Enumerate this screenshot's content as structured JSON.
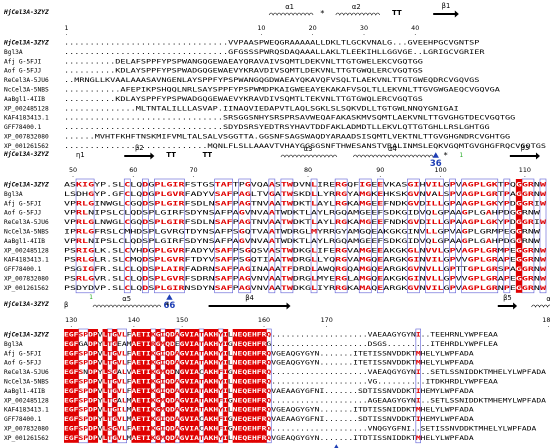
{
  "colors": {
    "identical": "#e00000",
    "similar_text": "#e00000",
    "box": "#5b5bd6",
    "marker": "#1f3fb5",
    "disulfide": "#22a822"
  },
  "blocks": [
    {
      "ref_label": "HjCel3A-3ZYZ",
      "numbers": [
        {
          "col": 0,
          "text": "1"
        },
        {
          "col": 38,
          "text": "10"
        },
        {
          "col": 48,
          "text": "20"
        },
        {
          "col": 58,
          "text": "30"
        },
        {
          "col": 68,
          "text": "40"
        }
      ],
      "ss": [
        {
          "type": "helix",
          "name": "α1",
          "start": 40,
          "end": 47
        },
        {
          "type": "star",
          "name": "*",
          "start": 50
        },
        {
          "type": "helix",
          "name": "α2",
          "start": 53,
          "end": 60
        },
        {
          "type": "turn",
          "name": "TT",
          "start": 64
        },
        {
          "type": "strand",
          "name": "β1",
          "start": 72,
          "end": 76
        }
      ],
      "rows": [
        {
          "name": "HjCel3A-3ZYZ",
          "seq": "................................VVPAASPWEQGRAAAAALLDKLTLGCKVNALG...GVEEHPGCVGNTSP"
        },
        {
          "name": "Bgl3A",
          "seq": "................................GFGSSSPWRQSDAQAAALLAKLTLEEKIHLLGGVGE..LGRIGCVGRIER"
        },
        {
          "name": "Afj G-5FJI",
          "seq": "..........DELAFSPPFYPSPWANGQGEWAEAYQRAVAIVSQMTLDEKVNLTTGTGWELEKCVGQTGG"
        },
        {
          "name": "Aof G-5FJJ",
          "seq": "..........KDLAYSPPFYPSPWADGQGEWAEVYKRAVDIVSQMTLDEKVNLTTGTGWQLERCVGQTGS"
        },
        {
          "name": "ReCel3A-5JU6",
          "seq": "..MRNGLLKVAALAAASAVNGENLAYSPPFYPSPWANGQGDWAEAYQKAVQFVSQLTLAEKVNLTTGTGWEQDRCVGQVGS"
        },
        {
          "name": "NcCel3A-5NBS",
          "seq": "...........AFEPIKPSHQQLNRLSAYSPPFYPSPWMDPKAIGWEEAYEKAKAFVSQLTLLEKVNLTTGVGWGAEQCVGQVGA"
        },
        {
          "name": "AaBgl1-4IIB",
          "seq": "..........KDLAYSPPFYPSPWADGQGEWAEVYKRAVDIVSQMTLTEKVNLTTGTGWQLERCVGQTGS"
        },
        {
          "name": "XP_002485128",
          "seq": "..............MLTNTALILLLASVAP.IINAQVIEDAPVTLAQLSGKLSLSQKVDLLTGTGWLNNQYGNIGAI"
        },
        {
          "name": "KAF4183413.1",
          "seq": "...............................SRSGGSNHYSRSPRSAVWEQAFAKASKMVSQMTLAEKVNLTTGVGHGTDECVGQTGG"
        },
        {
          "name": "GFF78400.1",
          "seq": "...............................SDYDSRSYEDTRSYHAVTDDFAKLADMDTLLEKVLQTTGTGHLLRSLGHTGG"
        },
        {
          "name": "XP_007832080",
          "seq": "......MVHTFKHFTNSKMIFVMLTALSALVSGGTTA.GGSNFSAGSWAQDYARAADSISQMTLVEKTNLTTGVGHGNDRCVGHTGG"
        },
        {
          "name": "XP_001261562",
          "seq": "............................MQNLFLSLLAAAVTVHAYGGSGSNFTHWESANSTVRALINMSLEQKVGQMTGVGHGFRQCVGQTGS"
        }
      ],
      "markers": [
        {
          "col": 72,
          "text": "36"
        }
      ],
      "disulfide": [
        {
          "col": 77,
          "text": "1"
        }
      ]
    },
    {
      "ref_label": "HjCel3A-3ZYZ",
      "numbers": [
        {
          "col": 1,
          "text": "50"
        },
        {
          "col": 11,
          "text": "60"
        },
        {
          "col": 21,
          "text": "70"
        },
        {
          "col": 40,
          "text": "80"
        },
        {
          "col": 52,
          "text": "90"
        },
        {
          "col": 62,
          "text": "100"
        },
        {
          "col": 76,
          "text": "110"
        },
        {
          "col": 90,
          "text": "120"
        }
      ],
      "ss": [
        {
          "type": "label",
          "name": "η1",
          "start": 2
        },
        {
          "type": "strand",
          "name": "β2",
          "start": 10,
          "end": 14
        },
        {
          "type": "turn",
          "name": "TT",
          "start": 17
        },
        {
          "type": "turn",
          "name": "TT",
          "start": 23
        },
        {
          "type": "helix",
          "name": "α3",
          "start": 36,
          "end": 44
        },
        {
          "type": "helix",
          "name": "α4",
          "start": 48,
          "end": 60
        },
        {
          "type": "star",
          "name": "*",
          "start": 63
        },
        {
          "type": "strand",
          "name": "β3",
          "start": 74,
          "end": 78
        },
        {
          "type": "turn",
          "name": "TT",
          "start": 93
        },
        {
          "type": "label",
          "name": "η2",
          "start": 98
        }
      ],
      "rows": [
        {
          "name": "HjCel3A-3ZYZ",
          "seq": "ASKIGYP.SLCLQDGPLGIRFSTGSTAFTPGVQAASTWDVNLIRERGQFIGEEVKASGIHVILGPVAGPLGKTPQGGRNW"
        },
        {
          "name": "Bgl3A",
          "seq": "LSDHGYP.GFCLQDGPLGVRFADYVSAFPAGLTVGATWSKDLLYRRGYAMGKEHKSKGVNVALSPVAGPLGRTPAGGRNW"
        },
        {
          "name": "Afj G-5FJI",
          "seq": "VPRLGINWGLCGQDSPLGIRFSDLNSAFPAGTNVAATWDKTLAYLRGKAMGEEFNDKGVDILLGPAAGPLGKYPDGGRIW"
        },
        {
          "name": "Aof G-5FJJ",
          "seq": "VPRLNIPSLCLQDSPLGIRFSDYNSAFPAGVNVAATWDKTLAYLRGQAMGEEFSDKGIDVQLGPAAGPLGAHPDGGRNW"
        },
        {
          "name": "ReCel3A-5JU6",
          "seq": "VPRLGLNWGLCGQDSPLGIRFSDLNSAFPAGTNVAATWDKTLAYLRGKAMGEEFNDKGVDILLGPAAGPLGKYPDGGRIW"
        },
        {
          "name": "NcCel3A-5NBS",
          "seq": "IPRLGFRSLCMHDSPLGVRGTDYNSAFPSGQTVAATWDRGLMYRRGYAMGQEAKGKGINVLLGPVAGPLGRMPEGGRNW"
        },
        {
          "name": "AaBgl1-4IIB",
          "seq": "VPRLNIPSLCLQDSPLGIRFSDYNSAFPAGVNVAATWDKTLAYLRGQAMGEEFSDKGIDVQLGPAAGPLGAHPDGGRNW"
        },
        {
          "name": "XP_002485128",
          "seq": "PSRIGLK.SLCVHDGPLGVRFADYVSAFPSGQSVASTWDKGLIFERGVAMGEEAKGKGLNVVLGPVAGPLGRMPEGGRNW"
        },
        {
          "name": "KAF4183413.1",
          "seq": "PSRLGLR.SLCMQDSPLGVRFTDYVSAFPSGQTIAATWDRGLLYQRGVAMGQEARGKGINVILGPVVGPLGRAPEGGRNW"
        },
        {
          "name": "GFF78400.1",
          "seq": "PSGIGFR.SLCLQDSPLAIRFADRNSAFPAGINAAATFDRDLAWQRGQAMGQEARGKGVNVLLGPTTGPLGRSPAGGRNW"
        },
        {
          "name": "XP_007832080",
          "seq": "PSRLGVR.SLCLQDSPLGVRFSDRNSAFPAGVNVAATWDRGLMYERGLAMGQEAKGKGINVLLGPVVGPLGRAPEGGRNW"
        },
        {
          "name": "XP_001261562",
          "seq": "PSDYDVP.SLCLQDSPLGIRNSDYNSAFPAGVNVAATWDKGLIYRRGKAMAQEARGKGVNVILGPVAGPLGRNPEGGRNW"
        }
      ],
      "markers": [
        {
          "col": 17,
          "text": "66"
        }
      ],
      "disulfide": [
        {
          "col": 4,
          "text": "1"
        }
      ]
    },
    {
      "ref_label": "HjCel3A-3ZYZ",
      "numbers": [
        {
          "col": 1,
          "text": "130"
        },
        {
          "col": 14,
          "text": "140"
        },
        {
          "col": 24,
          "text": "150"
        },
        {
          "col": 41,
          "text": "160"
        },
        {
          "col": 54,
          "text": "170"
        },
        {
          "col": 100,
          "text": "180"
        },
        {
          "col": 114,
          "text": "190"
        }
      ],
      "ss": [
        {
          "type": "label",
          "name": "β",
          "start": 0
        },
        {
          "type": "helix",
          "name": "α5",
          "start": 6,
          "end": 19
        },
        {
          "type": "star",
          "name": "*",
          "start": 21
        },
        {
          "type": "strand",
          "name": "β4",
          "start": 30,
          "end": 46
        },
        {
          "type": "strand",
          "name": "β5",
          "start": 90,
          "end": 93
        },
        {
          "type": "helix",
          "name": "α6",
          "start": 97,
          "end": 104
        },
        {
          "type": "helix",
          "name": "α7",
          "start": 111,
          "end": 118
        }
      ],
      "rows": [
        {
          "name": "HjCel3A-3ZYZ",
          "seq": "EGFSPDPVLTGVLFAETIKGIQDAGVIATAKHYILNEQEHFRQ....................VAEAAGYGYNI..TEEHRNLYWPFEAA"
        },
        {
          "name": "Bgl3A",
          "seq": "EGFGADPYLTGEAMAETIRGMQDEGVIATAKHYIGNEQEHFRG....................DSGS.........ITEHRDLYWPFLEA"
        },
        {
          "name": "Afj G-5FJI",
          "seq": "EGFSPDPVLTGVLFAETIKGIQDAGVIATAKHYILNEQEHFRQVGEAQGYGYN.......ITETISSNVDDKTMHELYLWPFADA"
        },
        {
          "name": "Aof G-5FJJ",
          "seq": "EGFSPDPVLTGVLFAETIKGIQDAGVIATAKHYILNEQEHFRQVGEAQGYGYN.......ITETISSNVDDKTMHELYLWPFADA"
        },
        {
          "name": "ReCel3A-5JU6",
          "seq": "EGFSNDPYLSGALVAETIKGMQDNGVIACAKHFIGNEQEHFRQ....................VAEAQGYGYNI..SETLSSNIDDKTMHELYLWPFADA"
        },
        {
          "name": "NcCel3A-5NBS",
          "seq": "EGFSPDPVLTGVLFAETIKGIQDAGVIATAKHYILNEQEHFRQ....................VG..........ITDKHRDLYWPFEAA"
        },
        {
          "name": "AaBgl1-4IIB",
          "seq": "EGFSPDPVLTGVLFAETIKGIQDAGVIATAKHYILNEQEHFRQVAEAAGYGFNI.......SDTISSNVDDKTIHEMYLWPFADA"
        },
        {
          "name": "XP_002485128",
          "seq": "EGFSPDPYLTGALMAETIKGMQDAGVIATAKHFIGNEQEHFRQ....................AGEAAGYGYNI..SETLSSNIDDKTMHEMYLWPFADA"
        },
        {
          "name": "KAF4183413.1",
          "seq": "EGFSPDPVLTGILMAETIKGMQDAGVIATAKHYILNEQEHFRQVGEAQGYGYN.......ITDTISSNIDDKTMHELYLWPFADA"
        },
        {
          "name": "GFF78400.1",
          "seq": "EGFSPDPYLTGVLMAETIKGIQDAGVIACAKHFIGNEQEHFRQVAEAAGYGFNI.......SDTISSNVDDKTIHEMYLWPFADA"
        },
        {
          "name": "XP_007832080",
          "seq": "EGFSPDPVLSGVLFAETIKGIQDAGVIACAKHFIGNEQEHFRQ....................VNQGYGFNI..SETISSNVDDKTMHELYLWPFADA"
        },
        {
          "name": "XP_001261562",
          "seq": "EGFSPDPVLTGVLMAETIKGMQDAGVIATAKHYILNEQEHFRQVGEAQGYGYN.......ITDTISSNIDDKTMHELYLWPFADA"
        }
      ],
      "markers": [
        {
          "col": 56,
          "text": "168"
        }
      ],
      "disulfide": []
    }
  ]
}
